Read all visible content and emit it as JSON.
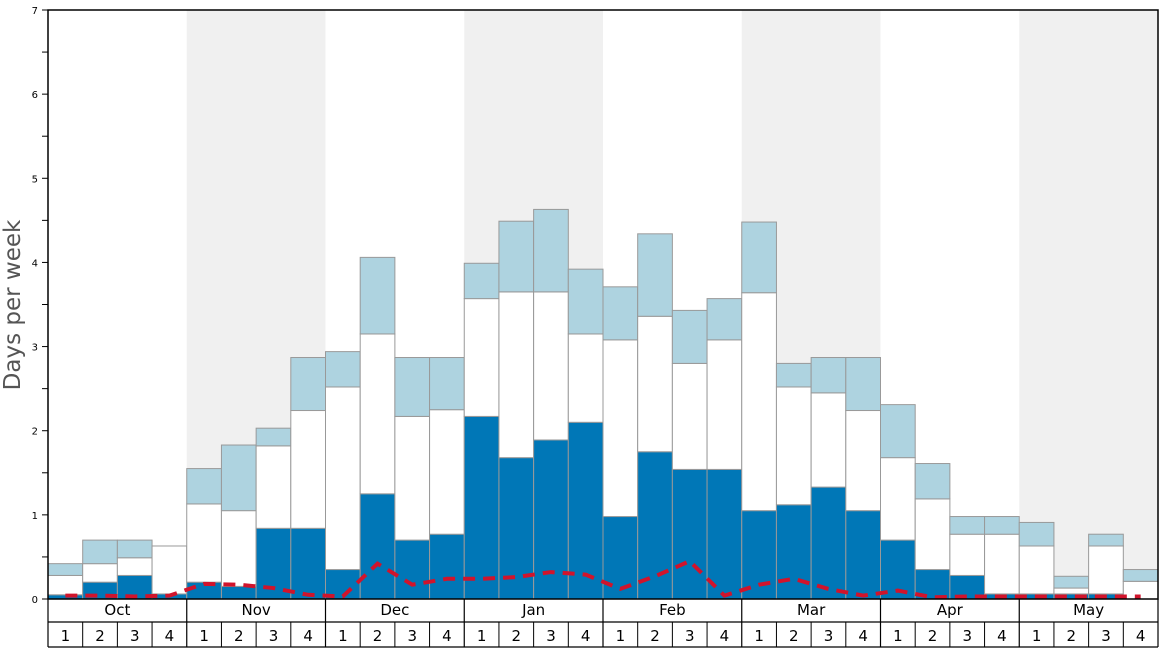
{
  "chart_data": {
    "type": "bar",
    "ylabel": "Days per week",
    "ylim": [
      0,
      7
    ],
    "yticks": [
      0,
      1,
      2,
      3,
      4,
      5,
      6,
      7
    ],
    "months": [
      "Oct",
      "Nov",
      "Dec",
      "Jan",
      "Feb",
      "Mar",
      "Apr",
      "May"
    ],
    "week_labels": [
      "1",
      "2",
      "3",
      "4"
    ],
    "colors": {
      "dark": "#0077b7",
      "white": "#ffffff",
      "light": "#aed3e0",
      "line": "#d0142c",
      "band": "#f0f0f0",
      "bar_border": "#999999"
    },
    "stacked": true,
    "series": [
      {
        "key": "dark",
        "values": [
          0.05,
          0.2,
          0.28,
          0.06,
          0.2,
          0.15,
          0.84,
          0.84,
          0.35,
          1.25,
          0.7,
          0.77,
          2.17,
          1.68,
          1.89,
          2.1,
          0.98,
          1.75,
          1.54,
          1.54,
          1.05,
          1.12,
          1.33,
          1.05,
          0.7,
          0.35,
          0.28,
          0.06,
          0.06,
          0.06,
          0.06,
          0.0
        ]
      },
      {
        "key": "white",
        "values": [
          0.23,
          0.22,
          0.21,
          0.57,
          0.93,
          0.9,
          0.98,
          1.4,
          2.17,
          1.9,
          1.47,
          1.48,
          1.4,
          1.97,
          1.76,
          1.05,
          2.1,
          1.61,
          1.26,
          1.54,
          2.59,
          1.4,
          1.12,
          1.19,
          0.98,
          0.84,
          0.49,
          0.71,
          0.57,
          0.07,
          0.57,
          0.21
        ]
      },
      {
        "key": "light",
        "values": [
          0.14,
          0.28,
          0.21,
          0.0,
          0.42,
          0.78,
          0.21,
          0.63,
          0.42,
          0.91,
          0.7,
          0.62,
          0.42,
          0.84,
          0.98,
          0.77,
          0.63,
          0.98,
          0.63,
          0.49,
          0.84,
          0.28,
          0.42,
          0.63,
          0.63,
          0.42,
          0.21,
          0.21,
          0.28,
          0.14,
          0.14,
          0.14
        ]
      }
    ],
    "dashed_line": [
      0.04,
      0.04,
      0.03,
      0.04,
      0.18,
      0.17,
      0.13,
      0.05,
      0.03,
      0.42,
      0.17,
      0.24,
      0.24,
      0.26,
      0.32,
      0.29,
      0.12,
      0.27,
      0.45,
      0.04,
      0.17,
      0.24,
      0.12,
      0.04,
      0.1,
      0.02,
      0.03,
      0.03,
      0.03,
      0.03,
      0.03,
      0.03
    ],
    "shaded_months": [
      "Nov",
      "Jan",
      "Mar",
      "May"
    ]
  }
}
